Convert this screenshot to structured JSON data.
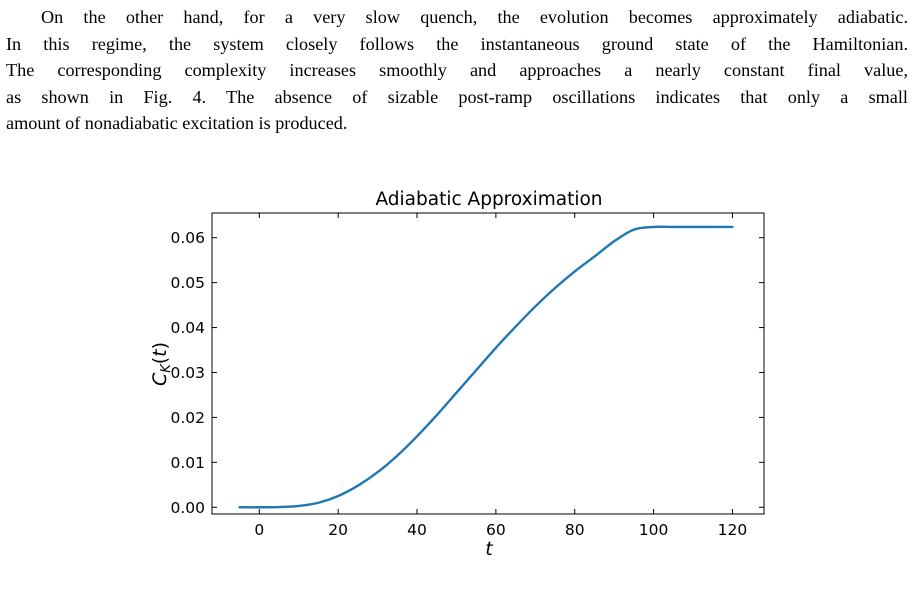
{
  "paragraph_top": {
    "lines": [
      "On the other hand, for a very slow quench, the evolution becomes approximately adiabatic.",
      "In this regime, the system closely follows the instantaneous ground state of the Hamiltonian.",
      "The corresponding complexity increases smoothly and approaches a nearly constant final value,",
      "as shown in Fig. 4. The absence of sizable post-ramp oscillations indicates that only a small",
      "amount of nonadiabatic excitation is produced."
    ]
  },
  "paragraph_bottom": {
    "lines": [
      ""
    ]
  },
  "chart_data": {
    "type": "line",
    "title": "Adiabatic Approximation",
    "xlabel": "t",
    "ylabel": "C_K(t)",
    "xlim": [
      -12,
      128
    ],
    "ylim": [
      -0.0015,
      0.0655
    ],
    "xticks": [
      0,
      20,
      40,
      60,
      80,
      100,
      120
    ],
    "yticks": [
      0.0,
      0.01,
      0.02,
      0.03,
      0.04,
      0.05,
      0.06
    ],
    "ytick_labels": [
      "0.00",
      "0.01",
      "0.02",
      "0.03",
      "0.04",
      "0.05",
      "0.06"
    ],
    "grid": false,
    "line_color": "#1f77b4",
    "series": [
      {
        "x": [
          -5,
          0,
          5,
          10,
          15,
          20,
          25,
          30,
          35,
          40,
          45,
          50,
          55,
          60,
          65,
          70,
          75,
          80,
          85,
          90,
          95,
          100,
          105,
          110,
          115,
          120
        ],
        "values": [
          0.0,
          0.0,
          5e-05,
          0.0003,
          0.001,
          0.0025,
          0.0048,
          0.0078,
          0.0115,
          0.0158,
          0.0205,
          0.0255,
          0.0305,
          0.0355,
          0.0402,
          0.0447,
          0.0488,
          0.0525,
          0.0558,
          0.0592,
          0.0618,
          0.0624,
          0.0624,
          0.0624,
          0.0624,
          0.0624
        ]
      }
    ]
  }
}
